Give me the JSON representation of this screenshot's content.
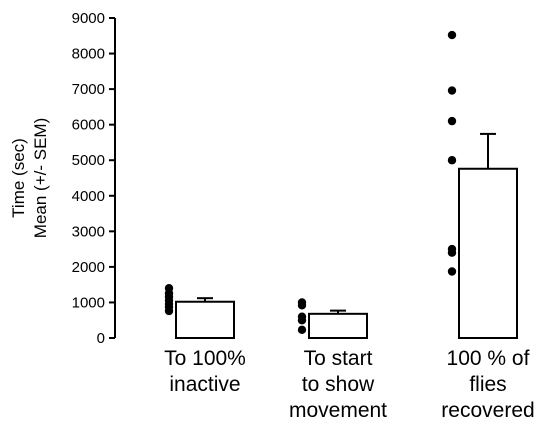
{
  "chart_data": {
    "type": "bar",
    "title": "",
    "ylabel_lines": [
      "Time (sec)",
      "Mean (+/- SEM)"
    ],
    "xlabel": "",
    "ylim": [
      0,
      9000
    ],
    "yticks": [
      0,
      1000,
      2000,
      3000,
      4000,
      5000,
      6000,
      7000,
      8000,
      9000
    ],
    "ytick_labels": [
      "0",
      "1000",
      "2000",
      "3000",
      "4000",
      "5000",
      "6000",
      "7000",
      "8000",
      "9000"
    ],
    "grid": false,
    "categories": [
      [
        "To 100%",
        "inactive"
      ],
      [
        "To start",
        "to show",
        "movement"
      ],
      [
        "100 % of",
        "flies",
        "recovered"
      ]
    ],
    "values": [
      1020,
      680,
      4760
    ],
    "sem": [
      100,
      90,
      980
    ],
    "points": [
      [
        1400,
        1260,
        1160,
        1060,
        960,
        870,
        760
      ],
      [
        1000,
        920,
        600,
        500,
        230
      ],
      [
        8520,
        6960,
        6100,
        5000,
        2500,
        2400,
        1870
      ]
    ]
  }
}
